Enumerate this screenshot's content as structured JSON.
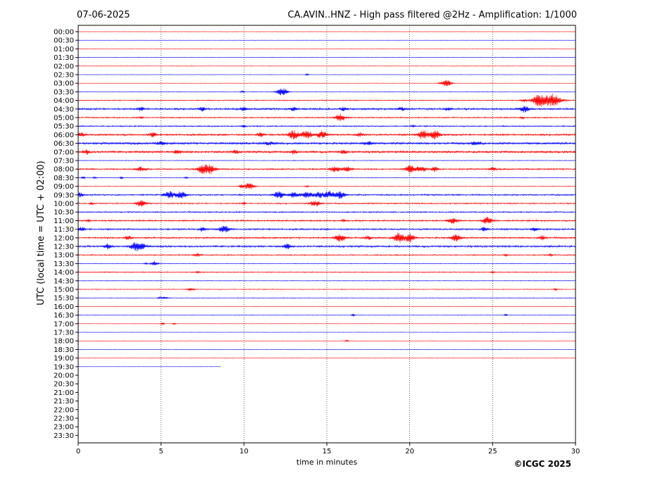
{
  "chart_data": {
    "type": "line",
    "date": "07-06-2025",
    "title": "CA.AVIN..HNZ - High pass filtered @2Hz - Amplification: 1/1000",
    "xlabel": "time in minutes",
    "ylabel": "UTC (local time = UTC + 02:00)",
    "copyright": "©ICGC 2025",
    "xlim": [
      0,
      30
    ],
    "x_ticks": [
      "0",
      "5",
      "10",
      "15",
      "20",
      "25",
      "30"
    ],
    "grid": "vertical dotted lines every 5 minutes",
    "row_labels": [
      "00:00",
      "00:30",
      "01:00",
      "01:30",
      "02:00",
      "02:30",
      "03:00",
      "03:30",
      "04:00",
      "04:30",
      "05:00",
      "05:30",
      "06:00",
      "06:30",
      "07:00",
      "07:30",
      "08:00",
      "08:30",
      "09:00",
      "09:30",
      "10:00",
      "10:30",
      "11:00",
      "11:30",
      "12:00",
      "12:30",
      "13:00",
      "13:30",
      "14:00",
      "14:30",
      "15:00",
      "15:30",
      "16:00",
      "16:30",
      "17:00",
      "17:30",
      "18:00",
      "18:30",
      "19:00",
      "19:30",
      "20:00",
      "20:30",
      "21:00",
      "21:30",
      "22:00",
      "22:30",
      "23:00",
      "23:30"
    ],
    "series_colors": {
      "even_rows": "#ff0000",
      "odd_rows": "#0000ff"
    },
    "data_end": {
      "row": "19:30",
      "minute": 8.6
    },
    "traces": [
      {
        "row": "00:00",
        "noise": 0.3,
        "events": []
      },
      {
        "row": "00:30",
        "noise": 0.3,
        "events": []
      },
      {
        "row": "01:00",
        "noise": 0.3,
        "events": []
      },
      {
        "row": "01:30",
        "noise": 0.4,
        "events": []
      },
      {
        "row": "02:00",
        "noise": 0.4,
        "events": []
      },
      {
        "row": "02:30",
        "noise": 0.3,
        "events": [
          [
            13.8,
            1.2,
            0.1
          ]
        ]
      },
      {
        "row": "03:00",
        "noise": 0.3,
        "events": [
          [
            22.2,
            5,
            0.3
          ]
        ]
      },
      {
        "row": "03:30",
        "noise": 0.4,
        "events": [
          [
            12.3,
            6,
            0.3
          ],
          [
            9.9,
            1.5,
            0.1
          ]
        ]
      },
      {
        "row": "04:00",
        "noise": 0.8,
        "events": [
          [
            27.8,
            8,
            0.4
          ],
          [
            28.6,
            9,
            0.5
          ],
          [
            26.9,
            2,
            0.2
          ]
        ]
      },
      {
        "row": "04:30",
        "noise": 1.5,
        "events": [
          [
            3.8,
            2.5,
            0.2
          ],
          [
            7.5,
            2.5,
            0.2
          ],
          [
            10.0,
            2.5,
            0.2
          ],
          [
            13.0,
            2.5,
            0.2
          ],
          [
            16.0,
            2.5,
            0.2
          ],
          [
            19.5,
            2.5,
            0.2
          ],
          [
            22.3,
            2.5,
            0.2
          ],
          [
            26.9,
            4,
            0.3
          ]
        ]
      },
      {
        "row": "05:00",
        "noise": 1.0,
        "events": [
          [
            15.8,
            5,
            0.3
          ],
          [
            3.8,
            1.5,
            0.1
          ],
          [
            26.8,
            2,
            0.1
          ]
        ]
      },
      {
        "row": "05:30",
        "noise": 1.0,
        "events": [
          [
            10.0,
            1.8,
            0.1
          ],
          [
            20.2,
            1.8,
            0.1
          ]
        ]
      },
      {
        "row": "06:00",
        "noise": 1.5,
        "events": [
          [
            13.0,
            6,
            0.3
          ],
          [
            13.8,
            6,
            0.3
          ],
          [
            14.7,
            5,
            0.3
          ],
          [
            20.8,
            6,
            0.3
          ],
          [
            21.5,
            6,
            0.3
          ],
          [
            4.5,
            3,
            0.2
          ],
          [
            11.0,
            3,
            0.2
          ],
          [
            17.0,
            2.5,
            0.2
          ],
          [
            0.2,
            3,
            0.2
          ]
        ]
      },
      {
        "row": "06:30",
        "noise": 1.8,
        "events": [
          [
            5.0,
            2,
            0.3
          ],
          [
            11.5,
            2,
            0.3
          ],
          [
            17.5,
            2,
            0.3
          ],
          [
            24.0,
            2,
            0.3
          ]
        ]
      },
      {
        "row": "07:00",
        "noise": 1.8,
        "events": [
          [
            0.5,
            3,
            0.2
          ],
          [
            6.0,
            2.5,
            0.2
          ],
          [
            9.5,
            2.5,
            0.2
          ],
          [
            13.0,
            2.5,
            0.2
          ],
          [
            16.0,
            2.5,
            0.2
          ]
        ]
      },
      {
        "row": "07:30",
        "noise": 0.5,
        "events": []
      },
      {
        "row": "08:00",
        "noise": 1.2,
        "events": [
          [
            3.8,
            3,
            0.3
          ],
          [
            7.5,
            6,
            0.3
          ],
          [
            8.0,
            6,
            0.3
          ],
          [
            15.5,
            4,
            0.3
          ],
          [
            16.2,
            4,
            0.3
          ],
          [
            20.0,
            5,
            0.3
          ],
          [
            20.7,
            4,
            0.3
          ],
          [
            21.5,
            3,
            0.2
          ],
          [
            25.0,
            2.5,
            0.2
          ]
        ]
      },
      {
        "row": "08:30",
        "noise": 0.5,
        "events": [
          [
            0.3,
            2,
            0.1
          ],
          [
            1.0,
            1.8,
            0.1
          ],
          [
            2.6,
            1.8,
            0.1
          ],
          [
            6.5,
            1.5,
            0.1
          ]
        ]
      },
      {
        "row": "09:00",
        "noise": 0.5,
        "events": [
          [
            10.3,
            5,
            0.3
          ],
          [
            9.8,
            2.5,
            0.1
          ],
          [
            13.8,
            1.5,
            0.1
          ]
        ]
      },
      {
        "row": "09:30",
        "noise": 1.2,
        "events": [
          [
            5.5,
            5,
            0.3
          ],
          [
            6.2,
            5,
            0.3
          ],
          [
            12.1,
            5,
            0.3
          ],
          [
            13.0,
            4,
            0.3
          ],
          [
            13.8,
            4,
            0.3
          ],
          [
            14.5,
            4,
            0.3
          ],
          [
            15.1,
            5,
            0.3
          ],
          [
            15.8,
            5,
            0.3
          ],
          [
            0.1,
            3,
            0.2
          ]
        ]
      },
      {
        "row": "10:00",
        "noise": 1.0,
        "events": [
          [
            3.8,
            4,
            0.3
          ],
          [
            14.3,
            4,
            0.3
          ],
          [
            0.8,
            2,
            0.1
          ],
          [
            10.0,
            2,
            0.1
          ]
        ]
      },
      {
        "row": "10:30",
        "noise": 1.0,
        "events": []
      },
      {
        "row": "11:00",
        "noise": 1.2,
        "events": [
          [
            22.6,
            4,
            0.3
          ],
          [
            24.7,
            5,
            0.3
          ],
          [
            16.0,
            2,
            0.1
          ],
          [
            0.6,
            2,
            0.1
          ]
        ]
      },
      {
        "row": "11:30",
        "noise": 1.3,
        "events": [
          [
            8.8,
            5,
            0.3
          ],
          [
            0.2,
            3,
            0.2
          ],
          [
            7.5,
            2.5,
            0.2
          ],
          [
            24.5,
            2.5,
            0.2
          ],
          [
            27.5,
            2.5,
            0.2
          ]
        ]
      },
      {
        "row": "12:00",
        "noise": 1.3,
        "events": [
          [
            15.8,
            5,
            0.3
          ],
          [
            19.3,
            7,
            0.3
          ],
          [
            20.0,
            6,
            0.3
          ],
          [
            22.8,
            5,
            0.3
          ],
          [
            28.0,
            3,
            0.2
          ],
          [
            3.0,
            3,
            0.2
          ],
          [
            17.5,
            2.5,
            0.2
          ]
        ]
      },
      {
        "row": "12:30",
        "noise": 1.5,
        "events": [
          [
            3.6,
            7,
            0.4
          ],
          [
            12.6,
            3.5,
            0.2
          ],
          [
            1.8,
            3,
            0.2
          ]
        ]
      },
      {
        "row": "13:00",
        "noise": 0.9,
        "events": [
          [
            7.2,
            2.5,
            0.2
          ],
          [
            28.5,
            2.2,
            0.1
          ],
          [
            25.8,
            2,
            0.1
          ]
        ]
      },
      {
        "row": "13:30",
        "noise": 0.5,
        "events": [
          [
            4.6,
            3.5,
            0.2
          ],
          [
            4.1,
            1.5,
            0.1
          ]
        ]
      },
      {
        "row": "14:00",
        "noise": 0.8,
        "events": [
          [
            7.2,
            2,
            0.1
          ],
          [
            25.0,
            1.8,
            0.1
          ]
        ]
      },
      {
        "row": "14:30",
        "noise": 0.5,
        "events": []
      },
      {
        "row": "15:00",
        "noise": 0.6,
        "events": [
          [
            6.8,
            2,
            0.2
          ],
          [
            28.8,
            1.5,
            0.1
          ]
        ]
      },
      {
        "row": "15:30",
        "noise": 0.5,
        "events": [
          [
            5.2,
            1.5,
            0.2
          ],
          [
            4.9,
            1.2,
            0.1
          ]
        ]
      },
      {
        "row": "16:00",
        "noise": 0.3,
        "events": []
      },
      {
        "row": "16:30",
        "noise": 0.4,
        "events": [
          [
            16.6,
            2,
            0.1
          ],
          [
            25.8,
            1.5,
            0.1
          ]
        ]
      },
      {
        "row": "17:00",
        "noise": 0.3,
        "events": [
          [
            5.1,
            2,
            0.1
          ],
          [
            5.8,
            1.5,
            0.1
          ]
        ]
      },
      {
        "row": "17:30",
        "noise": 0.3,
        "events": []
      },
      {
        "row": "18:00",
        "noise": 0.3,
        "events": [
          [
            16.2,
            1.2,
            0.1
          ]
        ]
      },
      {
        "row": "18:30",
        "noise": 0.3,
        "events": []
      },
      {
        "row": "19:00",
        "noise": 0.3,
        "events": []
      },
      {
        "row": "19:30",
        "noise": 0.2,
        "events": []
      }
    ]
  }
}
